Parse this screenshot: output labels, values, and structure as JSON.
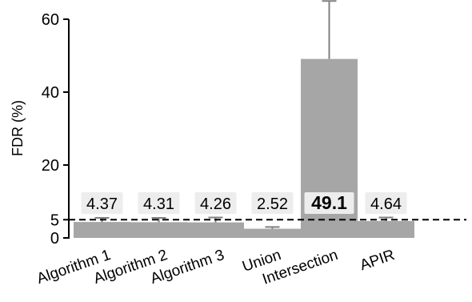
{
  "chart_data": {
    "type": "bar",
    "title": "",
    "xlabel": "",
    "ylabel": "FDR (%)",
    "ylim": [
      0,
      60
    ],
    "yticks": [
      0,
      5,
      20,
      40,
      60
    ],
    "categories": [
      "Algorithm 1",
      "Algorithm 2",
      "Algorithm 3",
      "Union",
      "Intersection",
      "APIR"
    ],
    "values": [
      4.37,
      4.31,
      4.26,
      2.52,
      49.1,
      4.64
    ],
    "value_labels": [
      "4.37",
      "4.31",
      "4.26",
      "2.52",
      "49.1",
      "4.64"
    ],
    "error_upper": [
      5.5,
      5.5,
      5.6,
      3.0,
      65.0,
      5.6
    ],
    "reference_line": 5,
    "highlight_index": 4,
    "colors": {
      "bar": "#a6a6a6",
      "error": "#808080",
      "axis": "#000000",
      "label_bg": "#ededed"
    }
  }
}
